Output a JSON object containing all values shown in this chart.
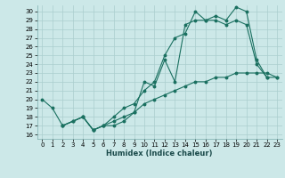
{
  "title": "",
  "xlabel": "Humidex (Indice chaleur)",
  "background_color": "#cce8e8",
  "grid_color": "#aacece",
  "line_color": "#1a7060",
  "xlim": [
    -0.5,
    23.5
  ],
  "ylim": [
    15.5,
    30.7
  ],
  "xticks": [
    0,
    1,
    2,
    3,
    4,
    5,
    6,
    7,
    8,
    9,
    10,
    11,
    12,
    13,
    14,
    15,
    16,
    17,
    18,
    19,
    20,
    21,
    22,
    23
  ],
  "yticks": [
    16,
    17,
    18,
    19,
    20,
    21,
    22,
    23,
    24,
    25,
    26,
    27,
    28,
    29,
    30
  ],
  "line1_x": [
    0,
    1,
    2,
    3,
    4,
    5,
    6,
    7,
    8,
    9,
    10,
    11,
    12,
    13,
    14,
    15,
    16,
    17,
    18,
    19,
    20,
    21,
    22,
    23
  ],
  "line1_y": [
    20,
    19,
    17,
    17.5,
    18,
    16.5,
    17,
    18,
    19,
    19.5,
    21,
    22,
    25,
    27,
    27.5,
    30,
    29,
    29.5,
    29,
    30.5,
    30,
    24.5,
    22.5,
    22.5
  ],
  "line2_x": [
    2,
    3,
    4,
    5,
    6,
    7,
    8,
    9,
    10,
    11,
    12,
    13,
    14,
    15,
    16,
    17,
    18,
    19,
    20,
    21,
    22
  ],
  "line2_y": [
    17,
    17.5,
    18,
    16.5,
    17,
    17.5,
    18,
    18.5,
    22,
    21.5,
    24.5,
    22,
    28.5,
    29,
    29,
    29,
    28.5,
    29,
    28.5,
    24,
    22.5
  ],
  "line3_x": [
    2,
    4,
    5,
    6,
    7,
    8,
    9,
    10,
    11,
    12,
    13,
    14,
    15,
    16,
    17,
    18,
    19,
    20,
    21,
    22,
    23
  ],
  "line3_y": [
    17,
    18,
    16.5,
    17,
    17,
    17.5,
    18.5,
    19.5,
    20,
    20.5,
    21,
    21.5,
    22,
    22,
    22.5,
    22.5,
    23,
    23,
    23,
    23,
    22.5
  ],
  "tick_fontsize": 5.0,
  "xlabel_fontsize": 6.0
}
